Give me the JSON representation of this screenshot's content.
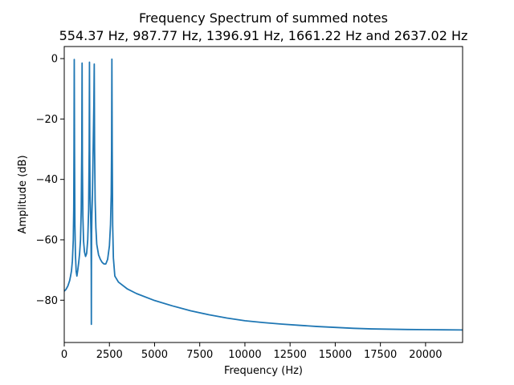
{
  "chart_data": {
    "type": "line",
    "title": "Frequency Spectrum of summed notes",
    "subtitle": "554.37 Hz, 987.77 Hz, 1396.91 Hz, 1661.22 Hz and 2637.02 Hz",
    "xlabel": "Frequency (Hz)",
    "ylabel": "Amplitude (dB)",
    "xlim": [
      0,
      22050
    ],
    "ylim": [
      -94,
      4
    ],
    "x_ticks": [
      0,
      2500,
      5000,
      7500,
      10000,
      12500,
      15000,
      17500,
      20000
    ],
    "x_tick_labels": [
      "0",
      "2500",
      "5000",
      "7500",
      "10000",
      "12500",
      "15000",
      "17500",
      "20000"
    ],
    "y_ticks": [
      0,
      -20,
      -40,
      -60,
      -80
    ],
    "y_tick_labels": [
      "0",
      "−20",
      "−40",
      "−60",
      "−80"
    ],
    "grid": false,
    "color": "#1f77b4",
    "series": [
      {
        "x": [
          0,
          100,
          200,
          300,
          350,
          400,
          450,
          500,
          525,
          540,
          554,
          570,
          590,
          620,
          660,
          700,
          750,
          800,
          850,
          900,
          940,
          970,
          988,
          1005,
          1030,
          1070,
          1120,
          1180,
          1240,
          1300,
          1350,
          1380,
          1397,
          1410,
          1430,
          1460,
          1480,
          1495,
          1500,
          1505,
          1515,
          1530,
          1560,
          1600,
          1640,
          1661,
          1680,
          1710,
          1750,
          1800,
          1900,
          2000,
          2100,
          2200,
          2300,
          2400,
          2500,
          2560,
          2600,
          2620,
          2637,
          2655,
          2680,
          2720,
          2800,
          3000,
          3500,
          4000,
          5000,
          6000,
          7000,
          8000,
          9000,
          10000,
          11000,
          12000,
          13000,
          14000,
          15000,
          16000,
          17000,
          18000,
          19000,
          20000,
          21000,
          22050
        ],
        "y": [
          -77,
          -76.4,
          -75.3,
          -73.5,
          -72,
          -70.3,
          -67,
          -60,
          -50,
          -30,
          -0.3,
          -30,
          -55,
          -65,
          -70.5,
          -72,
          -70,
          -67.5,
          -64.5,
          -60,
          -50,
          -30,
          -1.5,
          -35,
          -52,
          -60.5,
          -64,
          -65.5,
          -64.5,
          -60,
          -50,
          -30,
          -1.2,
          -30,
          -45,
          -52,
          -58,
          -70,
          -88,
          -70,
          -58,
          -52,
          -45,
          -30,
          -15,
          -1.8,
          -30,
          -47,
          -56,
          -61.5,
          -65,
          -66.5,
          -67.5,
          -68,
          -68,
          -66.5,
          -62,
          -55,
          -45,
          -30,
          -0.2,
          -30,
          -55,
          -66,
          -72,
          -74,
          -76.3,
          -77.8,
          -80.1,
          -81.9,
          -83.5,
          -84.8,
          -85.9,
          -86.8,
          -87.4,
          -87.9,
          -88.3,
          -88.7,
          -89,
          -89.3,
          -89.5,
          -89.6,
          -89.7,
          -89.75,
          -89.8,
          -89.85
        ]
      }
    ]
  }
}
